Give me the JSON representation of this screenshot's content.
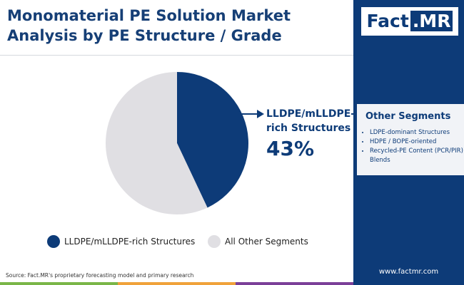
{
  "chart_data": {
    "type": "pie",
    "title": "Monomaterial PE Solution Market Analysis by PE Structure / Grade",
    "categories": [
      "LLDPE/mLLDPE-rich Structures",
      "All Other Segments"
    ],
    "values": [
      43,
      57
    ],
    "value_labels": [
      "43%",
      null
    ],
    "colors": [
      "#0d3b78",
      "#e0dfe3"
    ],
    "legend": "bottom"
  },
  "brand": {
    "logo_left": "Fact",
    "logo_right": ".MR",
    "website": "www.factmr.com"
  },
  "side_panel": {
    "title": "Other Segments",
    "items": [
      "LDPE-dominant Structures",
      "HDPE / BOPE-oriented",
      "Recycled-PE Content (PCR/PIR) Blends"
    ]
  },
  "source": "Source: Fact.MR's proprietary forecasting model and primary research"
}
